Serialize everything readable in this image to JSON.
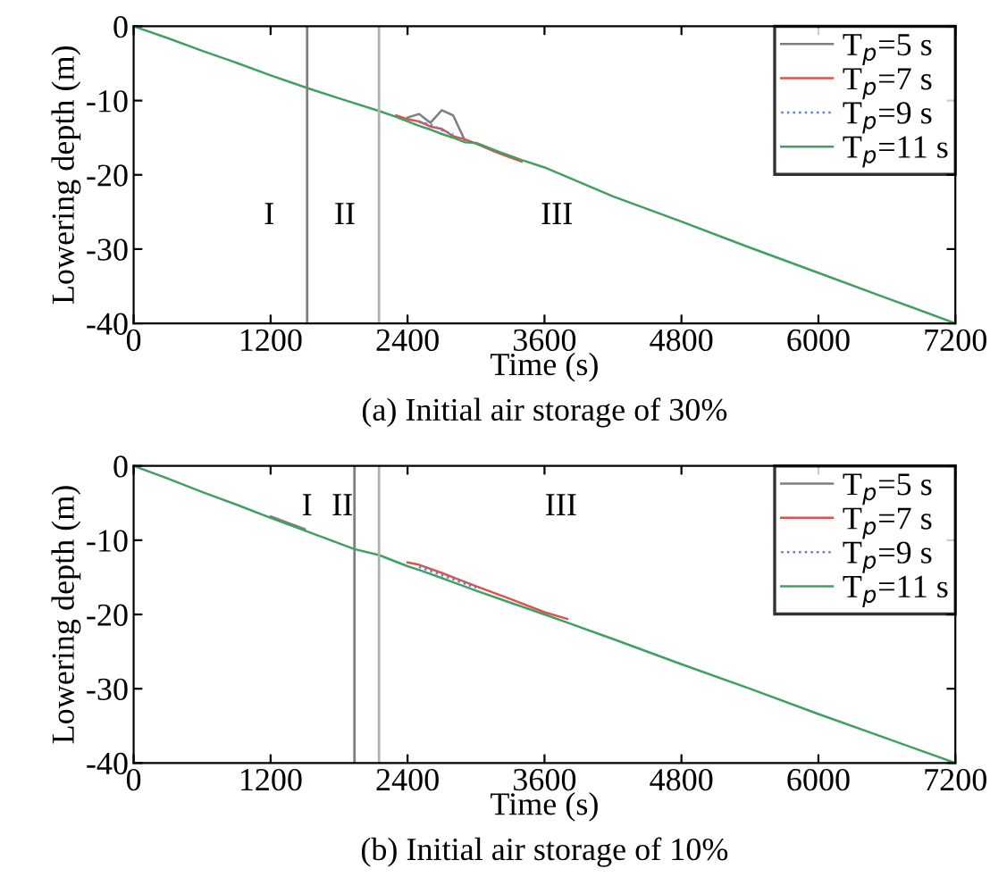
{
  "chart_data": [
    {
      "type": "line",
      "title": "(a) Initial air storage of 30%",
      "xlabel": "Time (s)",
      "ylabel": "Lowering depth (m)",
      "x": [
        0,
        300,
        600,
        900,
        1200,
        1520,
        1800,
        2150,
        2300,
        2400,
        2500,
        2600,
        2700,
        2800,
        2900,
        3000,
        3200,
        3400,
        3600,
        4200,
        4800,
        5400,
        6000,
        6600,
        7200
      ],
      "series": [
        {
          "name": "T$_{p}$=5 s",
          "color": "#7f7f7f",
          "line_style": "solid",
          "x": [
            2400,
            2500,
            2600,
            2700,
            2800,
            2900
          ],
          "values": [
            -12.3,
            -11.8,
            -13.0,
            -11.3,
            -12.0,
            -15.3
          ]
        },
        {
          "name": "T$_{p}$=7 s",
          "color": "#e05050",
          "line_style": "solid",
          "x": [
            2300,
            2400,
            2500,
            2600,
            2700,
            2800,
            2900,
            3000,
            3200,
            3400
          ],
          "values": [
            -12.0,
            -12.5,
            -12.8,
            -13.5,
            -13.8,
            -14.8,
            -15.2,
            -15.8,
            -17.1,
            -18.2
          ]
        },
        {
          "name": "T$_{p}$=9 s",
          "color": "#5a7fe0",
          "line_style": "dotted",
          "x": [
            2500,
            2600,
            2700,
            2800
          ],
          "values": [
            -12.9,
            -13.2,
            -14.0,
            -14.5
          ]
        },
        {
          "name": "T$_{p}$=11 s",
          "color": "#3fa060",
          "line_style": "solid",
          "values": [
            0,
            -1.6,
            -3.3,
            -4.9,
            -6.6,
            -8.3,
            -9.7,
            -11.4,
            -12.2,
            -12.8,
            -13.4,
            -13.9,
            -14.5,
            -15.0,
            -15.6,
            -15.7,
            -16.9,
            -18.0,
            -19.0,
            -22.9,
            -26.3,
            -29.8,
            -33.2,
            -36.6,
            -40
          ]
        }
      ],
      "xlim": [
        0,
        7200
      ],
      "xticks": [
        0,
        1200,
        2400,
        3600,
        4800,
        6000,
        7200
      ],
      "ylim": [
        -40,
        0
      ],
      "yticks": [
        -40,
        -30,
        -20,
        -10,
        0
      ],
      "ref_lines": [
        {
          "axis": "x",
          "value": 1520,
          "color": "#7f7f7f"
        },
        {
          "axis": "x",
          "value": 2150,
          "color": "#b0b0b0"
        }
      ],
      "annotations": [
        "I",
        "II",
        "III"
      ],
      "legend": "top right",
      "grid": false
    },
    {
      "type": "line",
      "title": "(b) Initial air storage of 10%",
      "xlabel": "Time (s)",
      "ylabel": "Lowering depth (m)",
      "x": [
        0,
        300,
        600,
        900,
        1200,
        1500,
        1935,
        2150,
        2400,
        2500,
        2700,
        3000,
        3300,
        3600,
        3800,
        4200,
        4800,
        5400,
        6000,
        6600,
        7200
      ],
      "series": [
        {
          "name": "T$_{p}$=5 s",
          "color": "#7f7f7f",
          "line_style": "solid",
          "x": [
            1200,
            1500
          ],
          "values": [
            -6.8,
            -8.5
          ]
        },
        {
          "name": "T$_{p}$=7 s",
          "color": "#e05050",
          "line_style": "solid",
          "x": [
            2400,
            2500,
            2700,
            3000,
            3300,
            3600,
            3800
          ],
          "values": [
            -13.0,
            -13.3,
            -14.4,
            -16.2,
            -17.9,
            -19.7,
            -20.6
          ]
        },
        {
          "name": "T$_{p}$=9 s",
          "color": "#5a7fe0",
          "line_style": "dotted",
          "x": [
            2500,
            2700,
            3000
          ],
          "values": [
            -13.6,
            -14.7,
            -16.4
          ]
        },
        {
          "name": "T$_{p}$=11 s",
          "color": "#3fa060",
          "line_style": "solid",
          "values": [
            0,
            -1.7,
            -3.5,
            -5.2,
            -7.0,
            -8.7,
            -11.2,
            -12.0,
            -13.5,
            -14.0,
            -15.1,
            -16.8,
            -18.4,
            -20.0,
            -21.1,
            -23.3,
            -26.7,
            -30.0,
            -33.4,
            -36.7,
            -40
          ]
        }
      ],
      "xlim": [
        0,
        7200
      ],
      "xticks": [
        0,
        1200,
        2400,
        3600,
        4800,
        6000,
        7200
      ],
      "ylim": [
        -40,
        0
      ],
      "yticks": [
        -40,
        -30,
        -20,
        -10,
        0
      ],
      "ref_lines": [
        {
          "axis": "x",
          "value": 1935,
          "color": "#7f7f7f"
        },
        {
          "axis": "x",
          "value": 2150,
          "color": "#b0b0b0"
        }
      ],
      "annotations": [
        "I",
        "II",
        "III"
      ],
      "legend": "top right",
      "grid": false
    }
  ]
}
